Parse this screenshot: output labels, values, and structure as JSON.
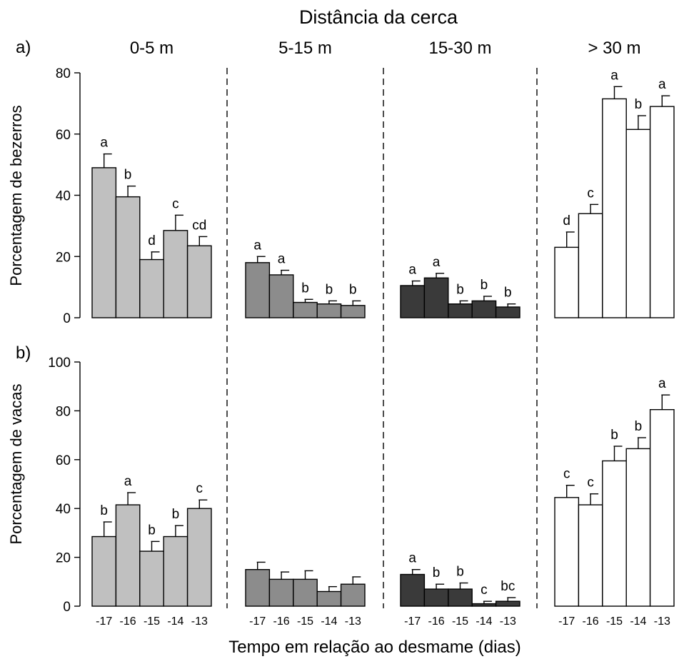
{
  "figure": {
    "title": "Distância da cerca",
    "xlabel": "Tempo em relação ao desmame (dias)",
    "groups": [
      "0-5 m",
      "5-15 m",
      "15-30 m",
      "> 30 m"
    ],
    "group_colors": [
      "#c0c0c0",
      "#8c8c8c",
      "#3a3a3a",
      "#ffffff"
    ],
    "days": [
      "-17",
      "-16",
      "-15",
      "-14",
      "-13"
    ]
  },
  "chart_data": [
    {
      "type": "bar",
      "panel_label": "a)",
      "ylabel": "Porcentagem de bezerros",
      "ylim": [
        0,
        80
      ],
      "yticks": [
        0,
        20,
        40,
        60,
        80
      ],
      "categories": [
        "-17",
        "-16",
        "-15",
        "-14",
        "-13"
      ],
      "series": [
        {
          "name": "0-5 m",
          "values": [
            49,
            39.5,
            19,
            28.5,
            23.5
          ],
          "errors": [
            4.5,
            3.5,
            2.5,
            5,
            3
          ],
          "letters": [
            "a",
            "b",
            "d",
            "c",
            "cd"
          ]
        },
        {
          "name": "5-15 m",
          "values": [
            18,
            14,
            5,
            4.5,
            4
          ],
          "errors": [
            2,
            1.5,
            1,
            1,
            1.5
          ],
          "letters": [
            "a",
            "a",
            "b",
            "b",
            "b"
          ]
        },
        {
          "name": "15-30 m",
          "values": [
            10.5,
            13,
            4.5,
            5.5,
            3.5
          ],
          "errors": [
            1.5,
            1.5,
            1,
            1.5,
            1
          ],
          "letters": [
            "a",
            "a",
            "b",
            "b",
            "b"
          ]
        },
        {
          "name": "> 30 m",
          "values": [
            23,
            34,
            71.5,
            61.5,
            69
          ],
          "errors": [
            5,
            3,
            4,
            4.5,
            3.5
          ],
          "letters": [
            "d",
            "c",
            "a",
            "b",
            "a"
          ]
        }
      ]
    },
    {
      "type": "bar",
      "panel_label": "b)",
      "ylabel": "Porcentagem de vacas",
      "ylim": [
        0,
        100
      ],
      "yticks": [
        0,
        20,
        40,
        60,
        80,
        100
      ],
      "categories": [
        "-17",
        "-16",
        "-15",
        "-14",
        "-13"
      ],
      "series": [
        {
          "name": "0-5 m",
          "values": [
            28.5,
            41.5,
            22.5,
            28.5,
            40
          ],
          "errors": [
            6,
            5,
            4,
            4.5,
            3.5
          ],
          "letters": [
            "b",
            "a",
            "b",
            "b",
            "c"
          ]
        },
        {
          "name": "5-15 m",
          "values": [
            15,
            11,
            11,
            6,
            9
          ],
          "errors": [
            3,
            3,
            3.5,
            2,
            3
          ],
          "letters": [
            "",
            "",
            "",
            "",
            ""
          ]
        },
        {
          "name": "15-30 m",
          "values": [
            13,
            7,
            7,
            1,
            2
          ],
          "errors": [
            2,
            2,
            2.5,
            1,
            1.5
          ],
          "letters": [
            "a",
            "b",
            "b",
            "c",
            "bc"
          ]
        },
        {
          "name": "> 30 m",
          "values": [
            44.5,
            41.5,
            59.5,
            64.5,
            80.5
          ],
          "errors": [
            5,
            4.5,
            6,
            4.5,
            6
          ],
          "letters": [
            "c",
            "c",
            "b",
            "b",
            "a"
          ]
        }
      ]
    }
  ]
}
